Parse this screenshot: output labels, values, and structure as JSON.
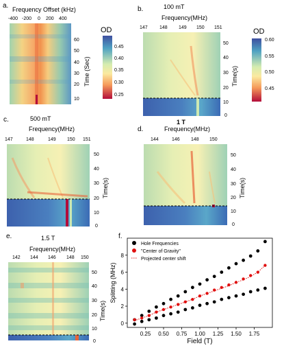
{
  "panels": {
    "a": {
      "letter": "a.",
      "xlabel": "Frequency Offset (kHz)",
      "xticks": [
        "-400",
        "-200",
        "0",
        "200",
        "400"
      ],
      "ylabel": "Time (Sec)",
      "yticks": [
        "60",
        "50",
        "40",
        "30",
        "20",
        "10"
      ],
      "cbar_title": "OD",
      "cbar_ticks": [
        "0.45",
        "0.40",
        "0.35",
        "0.30",
        "0.25"
      ]
    },
    "b": {
      "letter": "b.",
      "title": "100 mT",
      "xlabel": "Frequency(MHz)",
      "xticks": [
        "147",
        "148",
        "149",
        "150",
        "151"
      ],
      "ylabel": "Time(s)",
      "yticks": [
        "50",
        "40",
        "30",
        "20",
        "10",
        "0"
      ],
      "cbar_title": "OD",
      "cbar_ticks": [
        "0.60",
        "0.55",
        "0.50",
        "0.45"
      ]
    },
    "c": {
      "letter": "c.",
      "title": "500 mT",
      "xlabel": "Frequency(MHz)",
      "xticks": [
        "147",
        "148",
        "149",
        "150",
        "151"
      ],
      "ylabel": "Time(s)",
      "yticks": [
        "50",
        "40",
        "30",
        "20",
        "10",
        "0"
      ]
    },
    "d": {
      "letter": "d.",
      "title": "1 T",
      "xlabel": "Frequency(MHz)",
      "xticks": [
        "144",
        "146",
        "148",
        "150"
      ],
      "ylabel": "Time(s)",
      "yticks": [
        "50",
        "40",
        "30",
        "20",
        "10",
        "0"
      ]
    },
    "e": {
      "letter": "e.",
      "title": "1.5 T",
      "xlabel": "Frequency(MHz)",
      "xticks": [
        "142",
        "144",
        "146",
        "148",
        "150"
      ],
      "ylabel": "Time(s)",
      "yticks": [
        "50",
        "40",
        "30",
        "20",
        "10",
        "0"
      ]
    },
    "f": {
      "letter": "f."
    }
  },
  "colors": {
    "black_dots": "#000000",
    "red_dots": "#e01010",
    "dashed": "#000000"
  },
  "chart_data": {
    "type": "scatter",
    "xlabel": "Field (T)",
    "ylabel": "Splitting (MHz)",
    "xlim": [
      0.0,
      2.0
    ],
    "ylim": [
      -0.5,
      10
    ],
    "xticks": [
      "0.25",
      "0.50",
      "0.75",
      "1.00",
      "1.25",
      "1.50",
      "1.75"
    ],
    "yticks": [
      "0",
      "2",
      "4",
      "6",
      "8"
    ],
    "legend": [
      "Hole Frequencies",
      "\"Center of Gravity\"",
      "Projected center shift"
    ],
    "legend_position": "top-left",
    "x": [
      0.1,
      0.2,
      0.3,
      0.4,
      0.5,
      0.6,
      0.7,
      0.8,
      0.9,
      1.0,
      1.1,
      1.2,
      1.3,
      1.4,
      1.5,
      1.6,
      1.7,
      1.8,
      1.9
    ],
    "series": [
      {
        "name": "Hole Frequencies",
        "marker": "black",
        "values": [
          0.4,
          0.9,
          1.4,
          1.9,
          2.3,
          2.8,
          3.2,
          3.7,
          4.2,
          4.6,
          5.1,
          5.5,
          6.0,
          6.5,
          7.0,
          7.4,
          7.9,
          8.5,
          9.6
        ]
      },
      {
        "name": "Hole Frequencies",
        "marker": "black",
        "values": [
          -0.1,
          0.2,
          0.4,
          0.6,
          0.9,
          1.1,
          1.3,
          1.6,
          1.8,
          2.1,
          2.3,
          2.5,
          2.8,
          3.0,
          3.2,
          3.4,
          3.7,
          3.9,
          4.1
        ]
      },
      {
        "name": "\"Center of Gravity\"",
        "marker": "red",
        "values": [
          0.4,
          0.6,
          0.9,
          1.3,
          1.6,
          1.9,
          2.2,
          2.5,
          2.8,
          3.2,
          3.5,
          3.9,
          4.2,
          4.5,
          4.8,
          5.2,
          5.6,
          6.0,
          6.8
        ]
      },
      {
        "name": "Projected center shift",
        "marker": "dotted-line",
        "values": [
          0.3,
          0.6,
          0.9,
          1.3,
          1.6,
          1.9,
          2.2,
          2.5,
          2.8,
          3.2,
          3.5,
          3.8,
          4.1,
          4.4,
          4.8,
          5.1,
          5.5,
          6.0,
          6.8
        ]
      }
    ]
  }
}
